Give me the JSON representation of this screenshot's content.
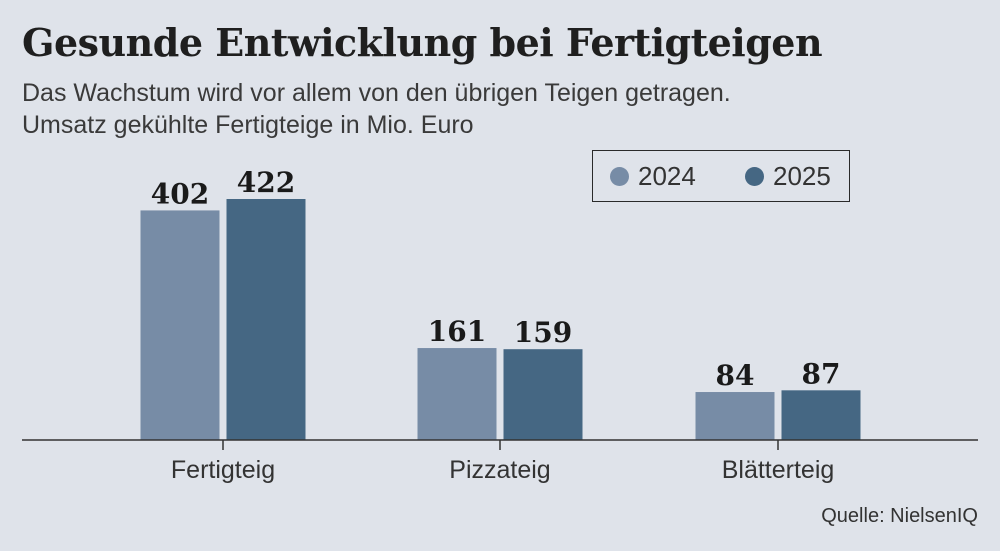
{
  "header": {
    "title": "Gesunde Entwicklung bei Fertigteigen",
    "subtitle_line1": "Das Wachstum wird vor allem von den übrigen Teigen getragen.",
    "subtitle_line2": "Umsatz gekühlte Fertigteige in Mio. Euro"
  },
  "source": "Quelle: NielsenIQ",
  "chart_data": {
    "type": "bar",
    "title": "Gesunde Entwicklung bei Fertigteigen",
    "subtitle": "Das Wachstum wird vor allem von den übrigen Teigen getragen.",
    "ylabel": "Umsatz gekühlte Fertigteige in Mio. Euro",
    "xlabel": "",
    "categories": [
      "Fertigteig",
      "Pizzateig",
      "Blätterteig"
    ],
    "series": [
      {
        "name": "2024",
        "values": [
          402,
          161,
          84
        ],
        "color": "#778ca6"
      },
      {
        "name": "2025",
        "values": [
          422,
          159,
          87
        ],
        "color": "#456783"
      }
    ],
    "ylim": [
      0,
      422
    ],
    "grid": false,
    "legend_position": "top-right",
    "data_labels": true
  }
}
